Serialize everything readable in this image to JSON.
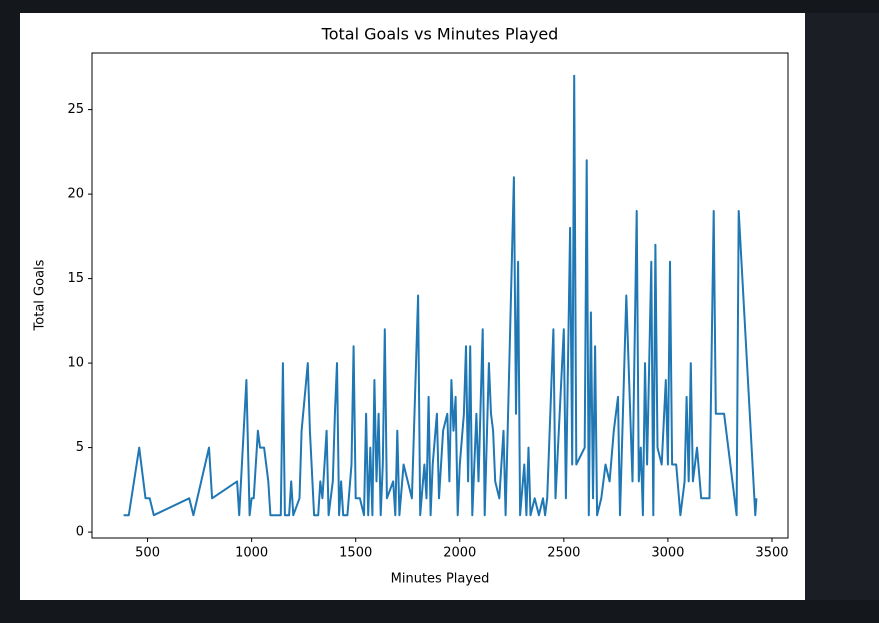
{
  "chart_data": {
    "type": "line",
    "title": "Total Goals vs Minutes Played",
    "x_label": "Minutes Played",
    "y_label": "Total Goals",
    "color": "#1f77b4",
    "x": [
      385,
      410,
      460,
      490,
      510,
      530,
      700,
      720,
      795,
      810,
      930,
      940,
      975,
      990,
      1000,
      1010,
      1030,
      1040,
      1060,
      1080,
      1090,
      1100,
      1140,
      1150,
      1160,
      1180,
      1190,
      1200,
      1230,
      1240,
      1270,
      1280,
      1300,
      1320,
      1330,
      1340,
      1360,
      1370,
      1390,
      1400,
      1410,
      1420,
      1430,
      1440,
      1460,
      1480,
      1490,
      1500,
      1520,
      1540,
      1550,
      1560,
      1570,
      1580,
      1590,
      1600,
      1610,
      1620,
      1630,
      1640,
      1650,
      1680,
      1690,
      1700,
      1710,
      1730,
      1770,
      1800,
      1810,
      1830,
      1840,
      1850,
      1860,
      1870,
      1890,
      1900,
      1920,
      1940,
      1950,
      1960,
      1970,
      1980,
      1990,
      2000,
      2020,
      2030,
      2040,
      2050,
      2060,
      2080,
      2090,
      2110,
      2120,
      2140,
      2150,
      2160,
      2170,
      2190,
      2210,
      2220,
      2260,
      2270,
      2280,
      2290,
      2310,
      2320,
      2330,
      2340,
      2360,
      2380,
      2400,
      2410,
      2420,
      2450,
      2460,
      2500,
      2510,
      2530,
      2540,
      2550,
      2560,
      2600,
      2610,
      2620,
      2630,
      2640,
      2650,
      2660,
      2680,
      2700,
      2720,
      2740,
      2760,
      2770,
      2800,
      2830,
      2850,
      2860,
      2870,
      2880,
      2890,
      2900,
      2920,
      2930,
      2940,
      2950,
      2970,
      2990,
      3000,
      3010,
      3020,
      3040,
      3060,
      3080,
      3090,
      3100,
      3110,
      3120,
      3140,
      3160,
      3200,
      3220,
      3230,
      3270,
      3330,
      3340,
      3420,
      3425
    ],
    "values": [
      1,
      1,
      5,
      2,
      2,
      1,
      2,
      1,
      5,
      2,
      3,
      1,
      9,
      1,
      2,
      2,
      6,
      5,
      5,
      3,
      1,
      1,
      1,
      10,
      1,
      1,
      3,
      1,
      2,
      6,
      10,
      6,
      1,
      1,
      3,
      2,
      6,
      1,
      3,
      7,
      10,
      1,
      3,
      1,
      1,
      4,
      11,
      2,
      2,
      1,
      7,
      1,
      5,
      1,
      9,
      3,
      7,
      1,
      4,
      12,
      2,
      3,
      1,
      6,
      1,
      4,
      2,
      14,
      1,
      4,
      2,
      8,
      1,
      4,
      7,
      2,
      6,
      7,
      3,
      9,
      6,
      8,
      1,
      4,
      7,
      11,
      3,
      11,
      1,
      7,
      3,
      12,
      1,
      10,
      7,
      6,
      3,
      2,
      6,
      1,
      21,
      7,
      16,
      1,
      4,
      1,
      5,
      1,
      2,
      1,
      2,
      1,
      2,
      12,
      2,
      12,
      2,
      18,
      4,
      27,
      4,
      5,
      22,
      1,
      13,
      2,
      11,
      1,
      2,
      4,
      3,
      6,
      8,
      1,
      14,
      3,
      19,
      3,
      5,
      1,
      10,
      4,
      16,
      1,
      17,
      5,
      4,
      9,
      4,
      16,
      4,
      4,
      1,
      3,
      8,
      3,
      10,
      3,
      5,
      2,
      2,
      19,
      7,
      7,
      1,
      19,
      1,
      2
    ],
    "xlim": [
      233,
      3577
    ],
    "ylim": [
      -0.35,
      28.35
    ],
    "xticks": [
      500,
      1000,
      1500,
      2000,
      2500,
      3000,
      3500
    ],
    "yticks": [
      0,
      5,
      10,
      15,
      20,
      25
    ]
  }
}
